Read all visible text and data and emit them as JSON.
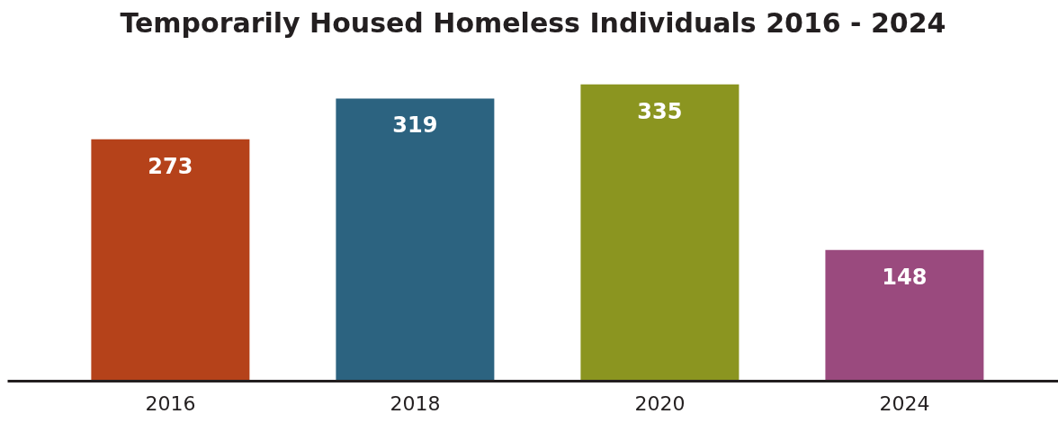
{
  "chart_data": {
    "type": "bar",
    "title": "Temporarily Housed Homeless Individuals 2016 - 2024",
    "categories": [
      "2016",
      "2018",
      "2020",
      "2024"
    ],
    "values": [
      273,
      319,
      335,
      148
    ],
    "colors": [
      "#b5421a",
      "#2c6380",
      "#8b9520",
      "#9a4a7e"
    ],
    "data_labels": true,
    "grid": false
  }
}
